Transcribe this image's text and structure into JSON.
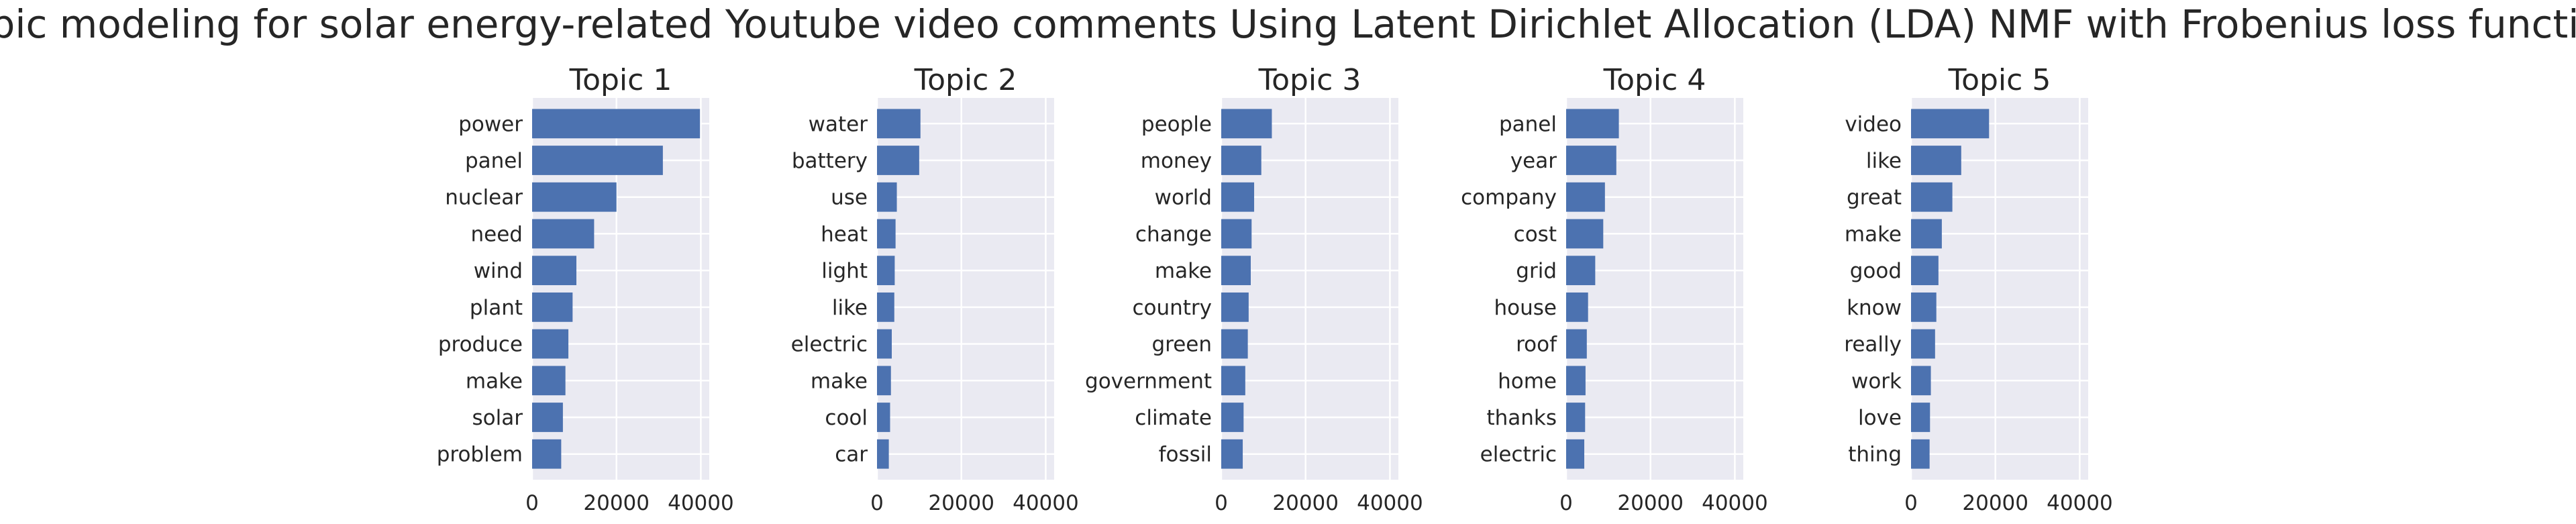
{
  "chart_data": {
    "type": "bar",
    "orientation": "horizontal",
    "title": "Topic modeling for solar energy-related Youtube video comments Using Latent Dirichlet Allocation (LDA) NMF with Frobenius loss function",
    "xlim": [
      0,
      40000
    ],
    "xticks": [
      0,
      20000,
      40000
    ],
    "xtick_labels": [
      "0",
      "20000",
      "40000"
    ],
    "grid": true,
    "sharex": true,
    "bar_color": "#4c72b0",
    "background_color": "#eaeaf2",
    "panels": [
      {
        "title": "Topic 1",
        "categories": [
          "power",
          "panel",
          "nuclear",
          "need",
          "wind",
          "plant",
          "produce",
          "make",
          "solar",
          "problem"
        ],
        "values": [
          39800,
          31000,
          20000,
          14700,
          10500,
          9600,
          8600,
          7900,
          7300,
          6900
        ]
      },
      {
        "title": "Topic 2",
        "categories": [
          "water",
          "battery",
          "use",
          "heat",
          "light",
          "like",
          "electric",
          "make",
          "cool",
          "car"
        ],
        "values": [
          10300,
          10000,
          4700,
          4400,
          4200,
          4100,
          3500,
          3300,
          3100,
          2800
        ]
      },
      {
        "title": "Topic 3",
        "categories": [
          "people",
          "money",
          "world",
          "change",
          "make",
          "country",
          "green",
          "government",
          "climate",
          "fossil"
        ],
        "values": [
          12000,
          9500,
          7800,
          7200,
          7000,
          6500,
          6300,
          5700,
          5300,
          5100
        ]
      },
      {
        "title": "Topic 4",
        "categories": [
          "panel",
          "year",
          "company",
          "cost",
          "grid",
          "house",
          "roof",
          "home",
          "thanks",
          "electric"
        ],
        "values": [
          12500,
          11900,
          9200,
          8800,
          6900,
          5200,
          4900,
          4600,
          4500,
          4300
        ]
      },
      {
        "title": "Topic 5",
        "categories": [
          "video",
          "like",
          "great",
          "make",
          "good",
          "know",
          "really",
          "work",
          "love",
          "thing"
        ],
        "values": [
          18500,
          11900,
          9800,
          7300,
          6500,
          6000,
          5700,
          4700,
          4500,
          4400
        ]
      }
    ]
  }
}
